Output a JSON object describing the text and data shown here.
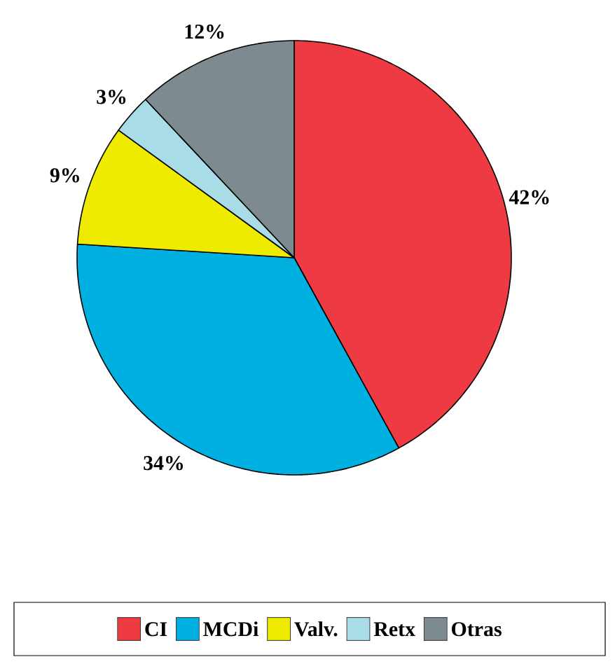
{
  "chart_data": {
    "type": "pie",
    "categories": [
      "CI",
      "MCDi",
      "Valv.",
      "Retx",
      "Otras"
    ],
    "values": [
      42,
      34,
      9,
      3,
      12
    ],
    "colors": [
      "#ee3a43",
      "#00b0e0",
      "#eeea00",
      "#a8dde8",
      "#7d8a8f"
    ],
    "value_labels": [
      "42%",
      "34%",
      "9%",
      "3%",
      "12%"
    ],
    "legend": "bottom"
  }
}
